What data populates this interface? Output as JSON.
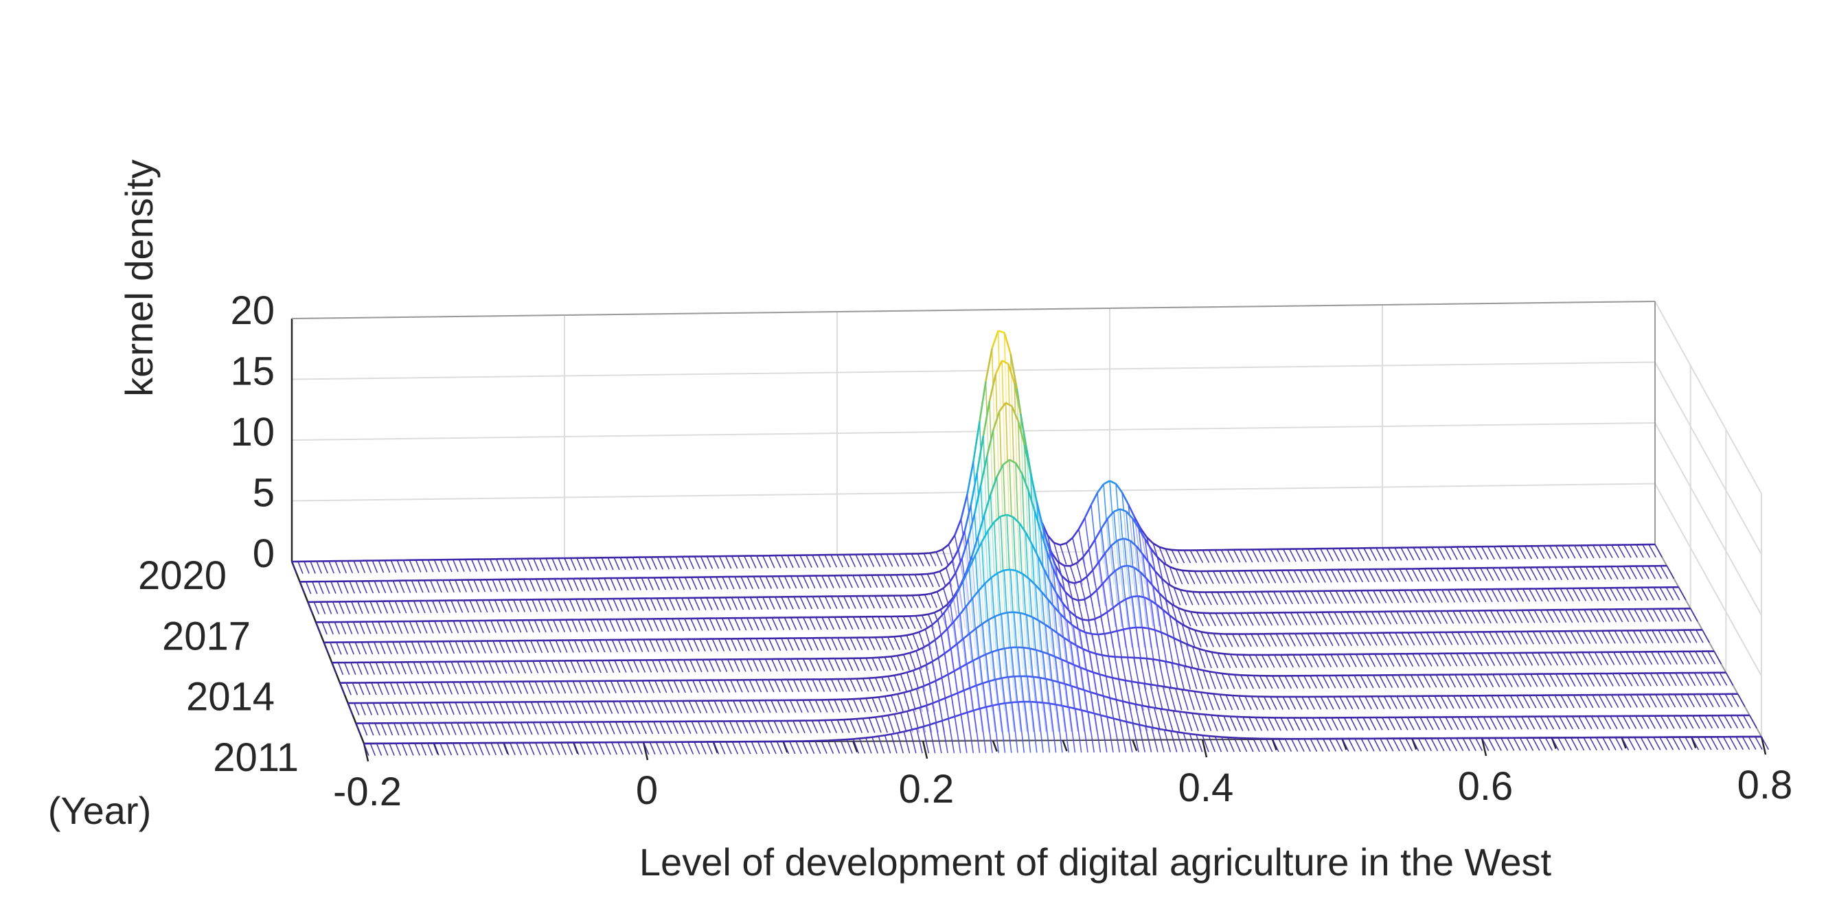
{
  "chart_data": {
    "type": "surface",
    "title": "",
    "xlabel": "Level of development of digital agriculture in the West",
    "ylabel": "(Year)",
    "zlabel": "kernel density",
    "xlim": [
      -0.2,
      0.8
    ],
    "ylim": [
      2011,
      2020
    ],
    "zlim": [
      0,
      20
    ],
    "x_ticks": [
      "-0.2",
      "0",
      "0.2",
      "0.4",
      "0.6",
      "0.8"
    ],
    "y_ticks": [
      "2011",
      "2014",
      "2017",
      "2020"
    ],
    "z_ticks": [
      "0",
      "5",
      "10",
      "15",
      "20"
    ],
    "grid": true,
    "colormap": [
      "#3e26a8",
      "#4a4bf2",
      "#2d8cf0",
      "#13bbe0",
      "#2fc4a3",
      "#86c95a",
      "#d6bd37",
      "#f9e01e"
    ],
    "series": [
      {
        "year": 2011,
        "peaks": [
          {
            "x": 0.27,
            "height": 3.1,
            "width": 0.05
          },
          {
            "x": 0.35,
            "height": 0.5,
            "width": 0.04
          }
        ]
      },
      {
        "year": 2012,
        "peaks": [
          {
            "x": 0.275,
            "height": 3.5,
            "width": 0.045
          },
          {
            "x": 0.36,
            "height": 0.6,
            "width": 0.04
          }
        ]
      },
      {
        "year": 2013,
        "peaks": [
          {
            "x": 0.28,
            "height": 4.2,
            "width": 0.04
          },
          {
            "x": 0.37,
            "height": 0.9,
            "width": 0.035
          }
        ]
      },
      {
        "year": 2014,
        "peaks": [
          {
            "x": 0.285,
            "height": 5.4,
            "width": 0.035
          },
          {
            "x": 0.38,
            "height": 1.4,
            "width": 0.03
          }
        ]
      },
      {
        "year": 2015,
        "peaks": [
          {
            "x": 0.29,
            "height": 7.2,
            "width": 0.03
          },
          {
            "x": 0.385,
            "height": 2.3,
            "width": 0.025
          }
        ]
      },
      {
        "year": 2016,
        "peaks": [
          {
            "x": 0.295,
            "height": 10.0,
            "width": 0.025
          },
          {
            "x": 0.39,
            "height": 3.2,
            "width": 0.02
          }
        ]
      },
      {
        "year": 2017,
        "peaks": [
          {
            "x": 0.305,
            "height": 12.8,
            "width": 0.02
          },
          {
            "x": 0.39,
            "height": 4.0,
            "width": 0.018
          }
        ]
      },
      {
        "year": 2018,
        "peaks": [
          {
            "x": 0.31,
            "height": 15.8,
            "width": 0.018
          },
          {
            "x": 0.395,
            "height": 4.5,
            "width": 0.017
          }
        ]
      },
      {
        "year": 2019,
        "peaks": [
          {
            "x": 0.315,
            "height": 17.6,
            "width": 0.016
          },
          {
            "x": 0.4,
            "height": 5.2,
            "width": 0.016
          }
        ]
      },
      {
        "year": 2020,
        "peaks": [
          {
            "x": 0.32,
            "height": 18.4,
            "width": 0.015
          },
          {
            "x": 0.4,
            "height": 5.8,
            "width": 0.015
          }
        ]
      }
    ]
  }
}
